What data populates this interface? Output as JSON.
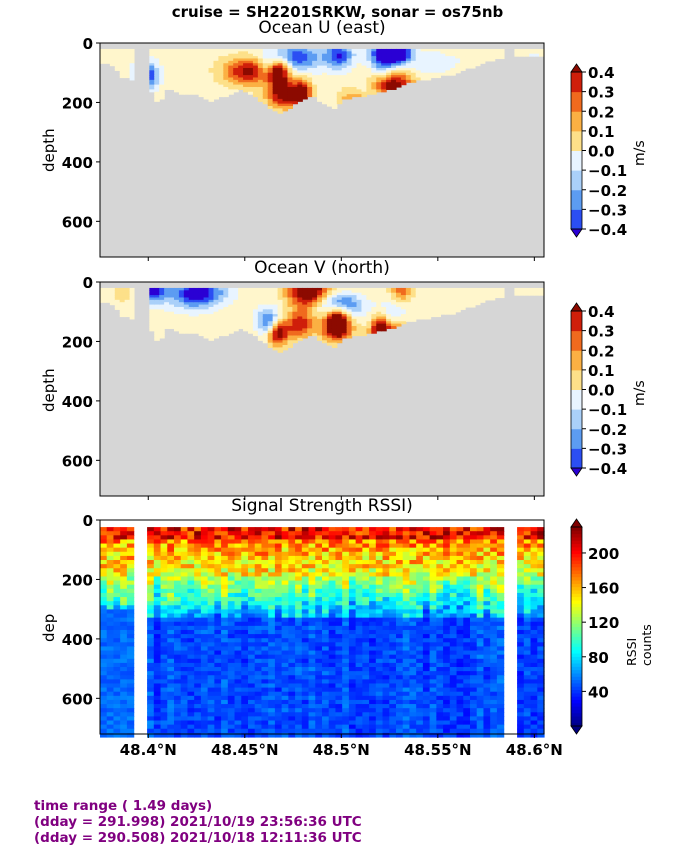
{
  "suptitle": "cruise = SH2201SRKW,  sonar = os75nb",
  "footer": {
    "line1": "time range ( 1.49 days)",
    "line2": "(dday = 291.998) 2021/10/19 23:56:36 UTC",
    "line3": "(dday = 290.508) 2021/10/18 12:11:36 UTC"
  },
  "colors": {
    "land": "#d6d6d6",
    "gap": "#ffffff"
  },
  "chart_data": [
    {
      "type": "heatmap",
      "title": "Ocean U (east)",
      "ylabel": "depth",
      "colorbar_label": "m/s",
      "colorbar_ticks": [
        "0.4",
        "0.3",
        "0.2",
        "0.1",
        "0.0",
        "−0.1",
        "−0.2",
        "−0.3",
        "−0.4"
      ],
      "yticks": [
        "0",
        "200",
        "400",
        "600"
      ],
      "xlim": [
        48.375,
        48.605
      ],
      "ylim": [
        720,
        0
      ],
      "clim": [
        -0.4,
        0.4
      ],
      "colormap": [
        "#2a00d4",
        "#2b4ef3",
        "#5c9cf2",
        "#aad0f9",
        "#e8f4ff",
        "#fff6cc",
        "#fde089",
        "#fbb043",
        "#f06a1e",
        "#cf1f0a",
        "#8c0a00"
      ]
    },
    {
      "type": "heatmap",
      "title": "Ocean V (north)",
      "ylabel": "depth",
      "colorbar_label": "m/s",
      "colorbar_ticks": [
        "0.4",
        "0.3",
        "0.2",
        "0.1",
        "0.0",
        "−0.1",
        "−0.2",
        "−0.3",
        "−0.4"
      ],
      "yticks": [
        "0",
        "200",
        "400",
        "600"
      ],
      "xlim": [
        48.375,
        48.605
      ],
      "ylim": [
        720,
        0
      ],
      "clim": [
        -0.4,
        0.4
      ]
    },
    {
      "type": "heatmap",
      "title": "Signal Strength RSSI)",
      "ylabel": "dep",
      "colorbar_label": "RSSI counts",
      "colorbar_ticks": [
        "200",
        "160",
        "120",
        "80",
        "40"
      ],
      "yticks": [
        "0",
        "200",
        "400",
        "600"
      ],
      "xticks": [
        "48.4°N",
        "48.45°N",
        "48.5°N",
        "48.55°N",
        "48.6°N"
      ],
      "xlim": [
        48.375,
        48.605
      ],
      "ylim": [
        720,
        0
      ],
      "clim": [
        0,
        230
      ],
      "colormap": [
        "#00007f",
        "#0000ff",
        "#0080ff",
        "#00ffff",
        "#80ff80",
        "#ffff00",
        "#ff8000",
        "#ff0000",
        "#7f0000"
      ]
    }
  ]
}
